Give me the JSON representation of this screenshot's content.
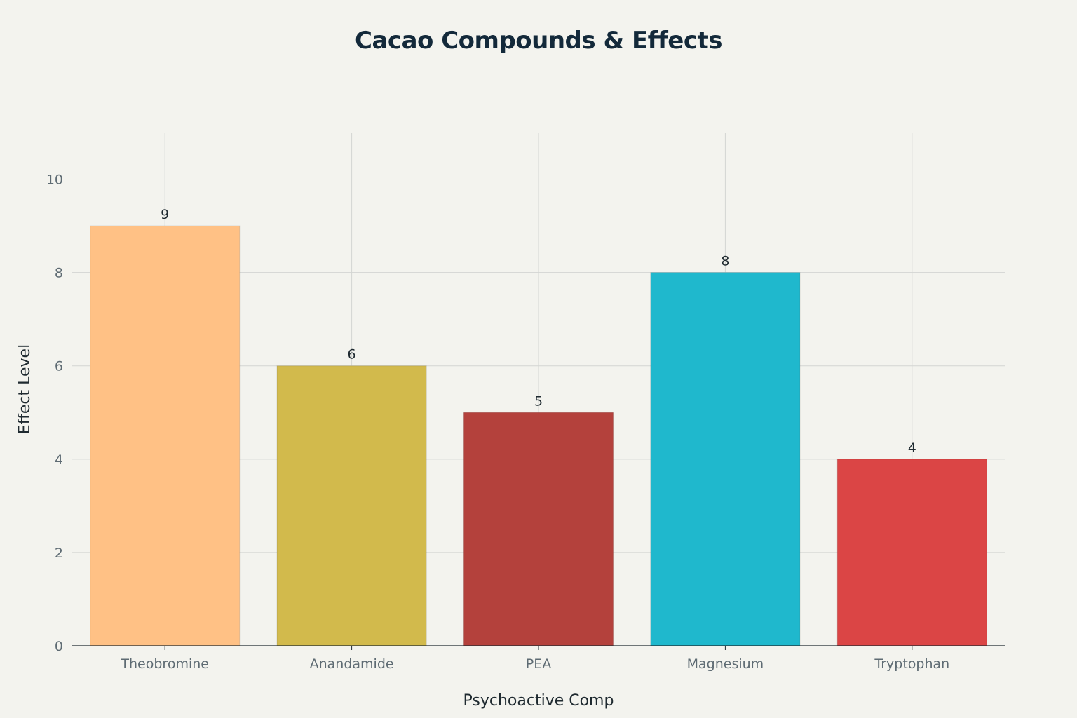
{
  "chart_data": {
    "type": "bar",
    "title": "Cacao Compounds & Effects",
    "xlabel": "Psychoactive Comp",
    "ylabel": "Effect Level",
    "categories": [
      "Theobromine",
      "Anandamide",
      "PEA",
      "Magnesium",
      "Tryptophan"
    ],
    "values": [
      9,
      6,
      5,
      8,
      4
    ],
    "value_labels": [
      "9",
      "6",
      "5",
      "8",
      "4"
    ],
    "colors": [
      "#ffc185",
      "#d2ba4c",
      "#b4413c",
      "#1fb8cd",
      "#db4545"
    ],
    "ylim": [
      0,
      11
    ],
    "yticks": [
      0,
      2,
      4,
      6,
      8,
      10
    ],
    "ytick_labels": [
      "0",
      "2",
      "4",
      "6",
      "8",
      "10"
    ],
    "grid": true,
    "legend": "none"
  }
}
